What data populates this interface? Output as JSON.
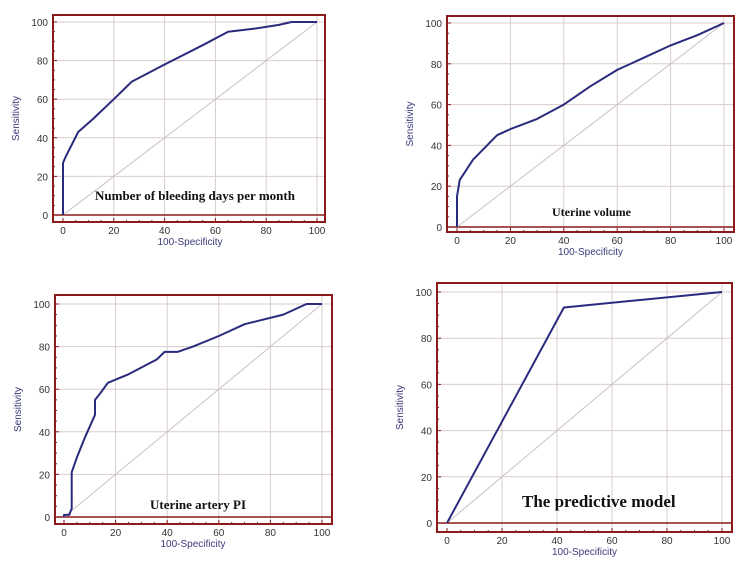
{
  "chart_data": [
    {
      "type": "line",
      "annotation": "Number  of bleeding days per month",
      "xlabel": "100-Specificity",
      "ylabel": "Sensitivity",
      "xlim": [
        0,
        100
      ],
      "ylim": [
        0,
        100
      ],
      "ticks": [
        0,
        20,
        40,
        60,
        80,
        100
      ],
      "grid": true,
      "series": [
        {
          "x": [
            0,
            0,
            0,
            1,
            6,
            12,
            20,
            27,
            40,
            55,
            65,
            75,
            85,
            90,
            100
          ],
          "y": [
            0,
            20,
            27,
            30,
            43,
            50,
            60,
            69,
            78,
            88,
            95,
            96.5,
            98.5,
            100,
            100
          ]
        }
      ],
      "reference_line": {
        "x": [
          0,
          100
        ],
        "y": [
          0,
          100
        ]
      }
    },
    {
      "type": "line",
      "annotation": "Uterine volume",
      "xlabel": "100-Specificity",
      "ylabel": "Sensitivity",
      "xlim": [
        0,
        100
      ],
      "ylim": [
        0,
        100
      ],
      "ticks": [
        0,
        20,
        40,
        60,
        80,
        100
      ],
      "grid": true,
      "series": [
        {
          "x": [
            0,
            0,
            1,
            6,
            15,
            20,
            30,
            40,
            50,
            60,
            70,
            80,
            90,
            100
          ],
          "y": [
            0,
            15,
            23,
            33,
            45,
            48,
            53,
            60,
            69,
            77,
            83,
            89,
            94,
            100
          ]
        }
      ],
      "reference_line": {
        "x": [
          0,
          100
        ],
        "y": [
          0,
          100
        ]
      }
    },
    {
      "type": "line",
      "annotation": "Uterine artery PI",
      "xlabel": "100-Specificity",
      "ylabel": "Sensitivity",
      "xlim": [
        0,
        100
      ],
      "ylim": [
        0,
        100
      ],
      "ticks": [
        0,
        20,
        40,
        60,
        80,
        100
      ],
      "grid": true,
      "series": [
        {
          "x": [
            0,
            0,
            2,
            3,
            3,
            5,
            8,
            12,
            12,
            14,
            17,
            25,
            36,
            39,
            44,
            50,
            60,
            70,
            85,
            94,
            100
          ],
          "y": [
            0,
            1,
            1,
            4,
            21,
            28,
            37,
            48,
            55,
            58,
            63,
            67,
            74,
            77.5,
            77.5,
            80,
            85,
            90.5,
            95,
            100,
            100
          ]
        }
      ],
      "reference_line": {
        "x": [
          0,
          100
        ],
        "y": [
          0,
          100
        ]
      }
    },
    {
      "type": "line",
      "annotation": "The predictive model",
      "xlabel": "100-Specificity",
      "ylabel": "Sensitivity",
      "xlim": [
        0,
        100
      ],
      "ylim": [
        0,
        100
      ],
      "ticks": [
        0,
        20,
        40,
        60,
        80,
        100
      ],
      "grid": true,
      "series": [
        {
          "x": [
            0,
            42.5,
            100
          ],
          "y": [
            0,
            93.3,
            100
          ]
        }
      ],
      "reference_line": {
        "x": [
          0,
          100
        ],
        "y": [
          0,
          100
        ]
      }
    }
  ],
  "colors": {
    "frame": "#8b1a1a",
    "curve": "#2b2b7e",
    "grid": "#d9cccc",
    "reference": "#c8c0c8"
  }
}
